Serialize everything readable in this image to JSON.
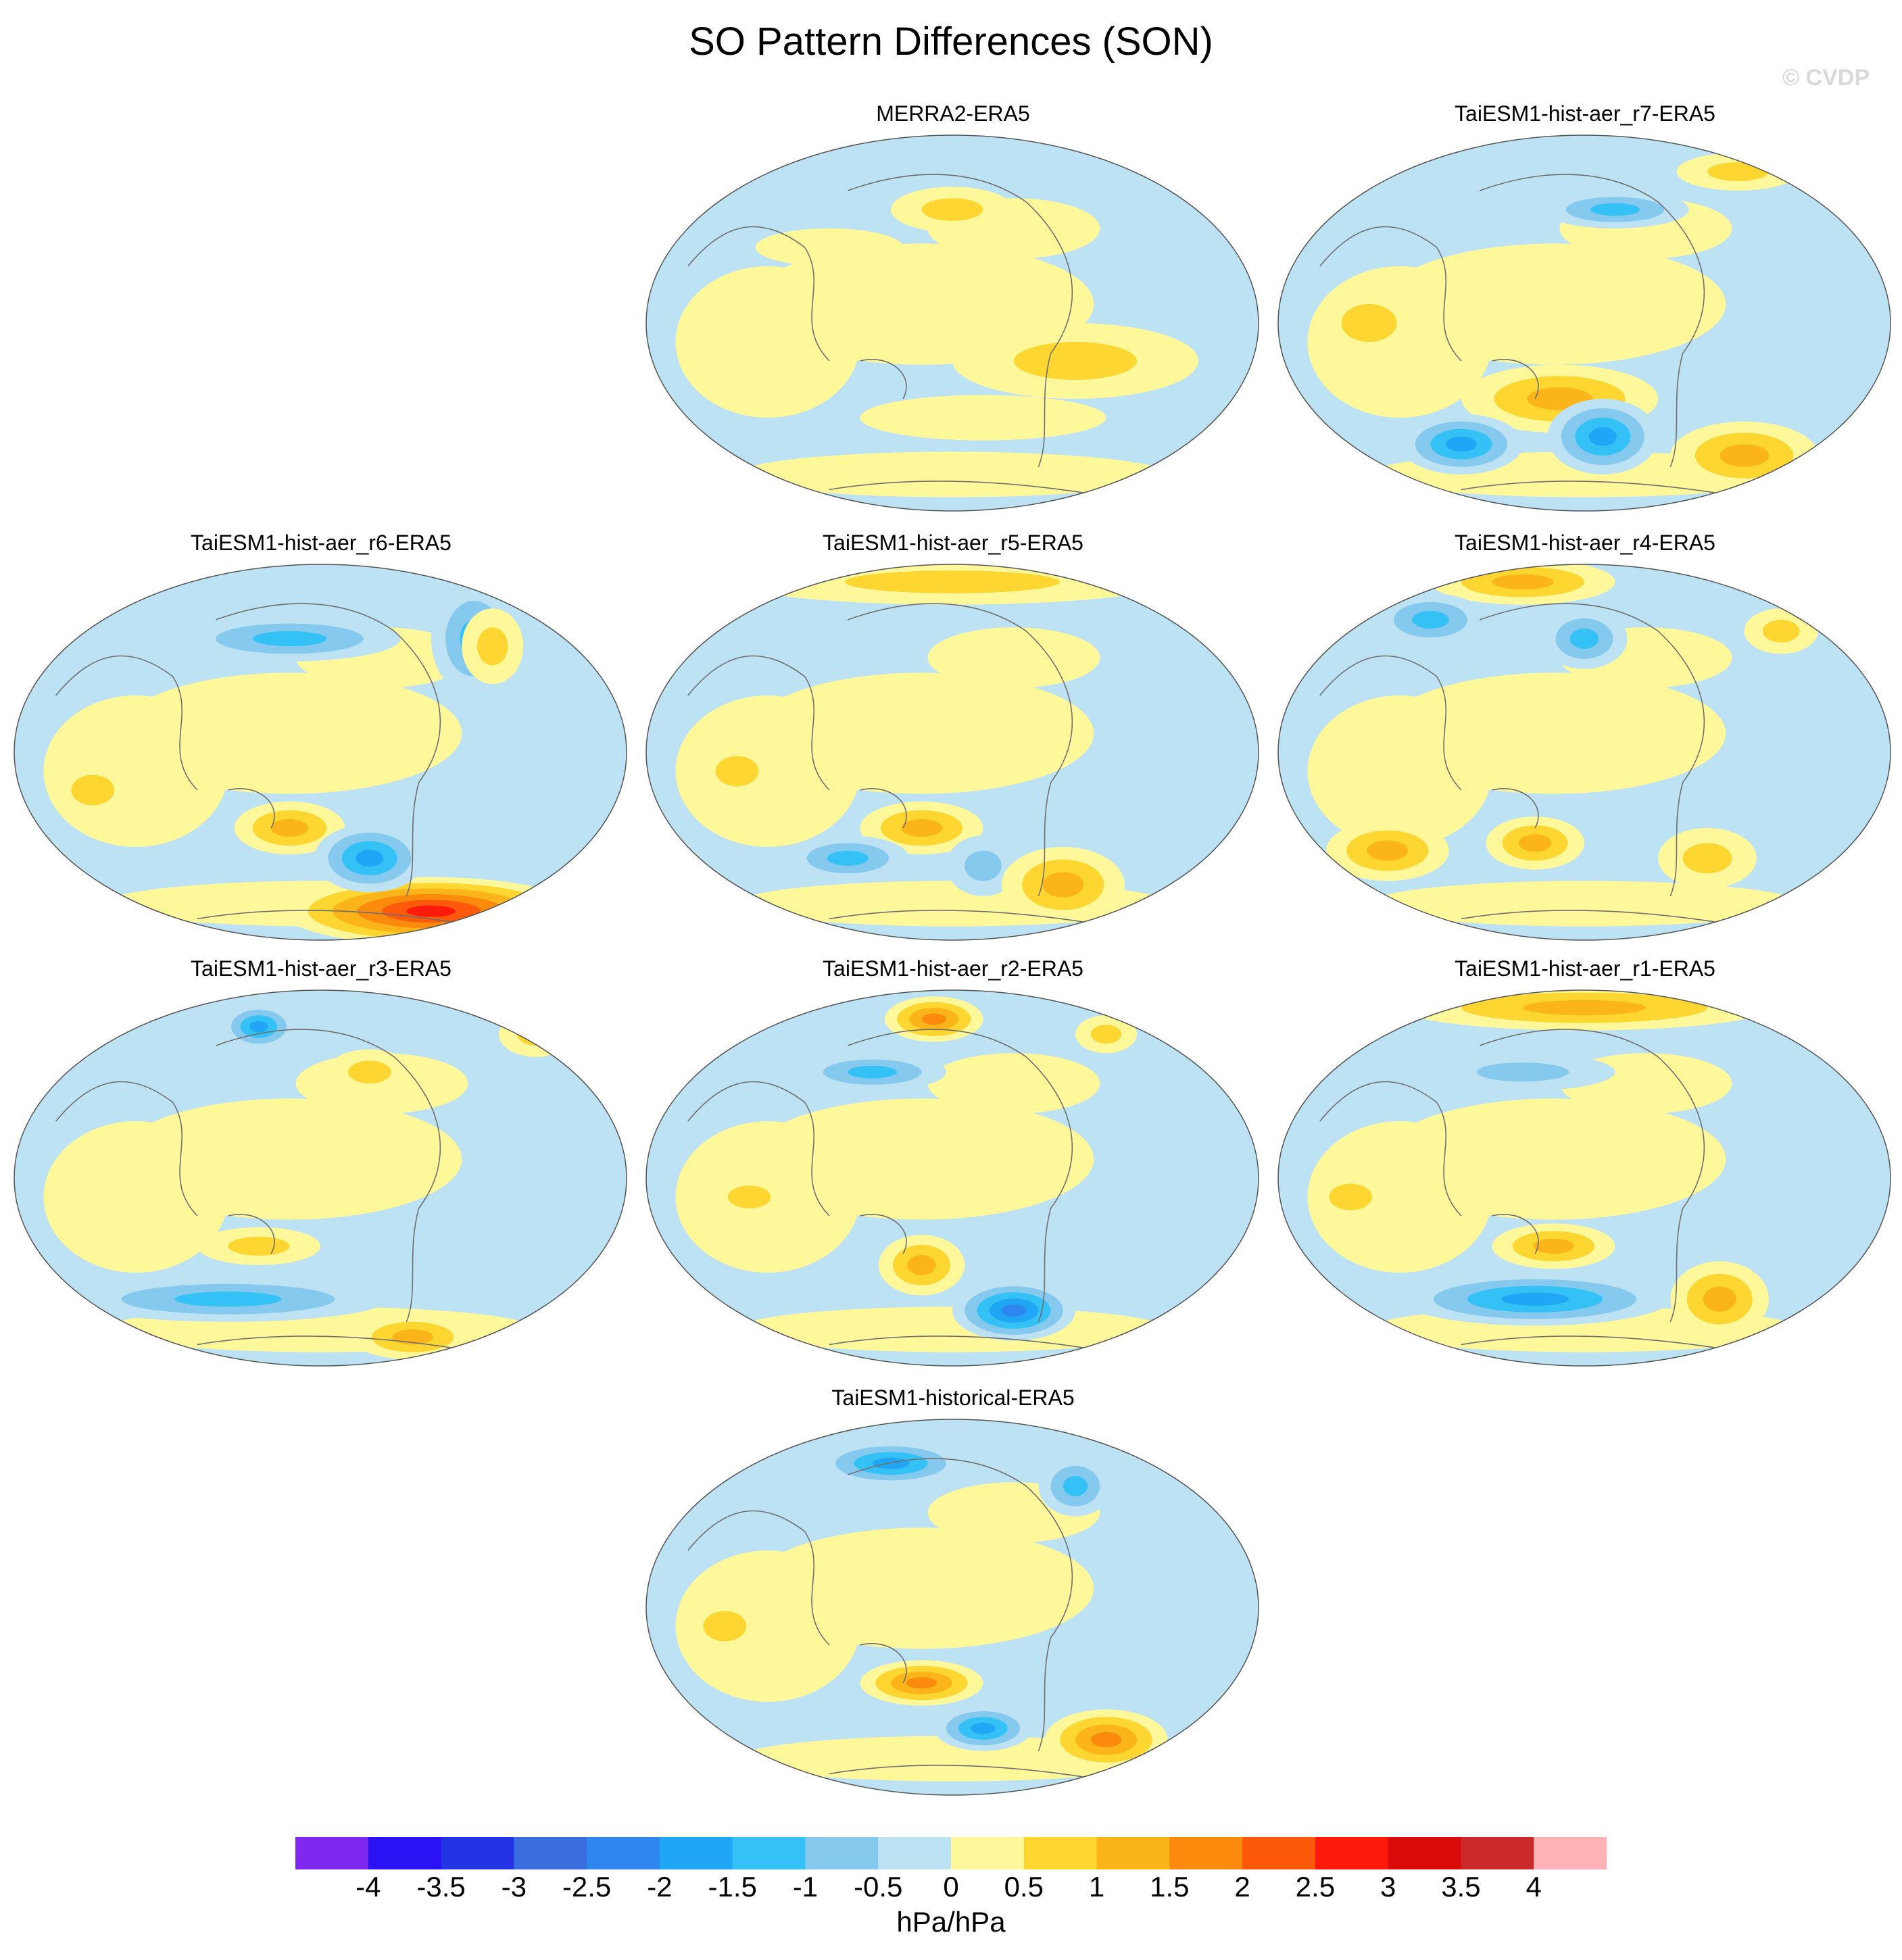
{
  "chart_data": {
    "type": "heatmap",
    "title": "SO Pattern Differences (SON)",
    "watermark": "© CVDP",
    "units": "hPa/hPa",
    "colorbar": {
      "ticks": [
        "-4",
        "-3.5",
        "-3",
        "-2.5",
        "-2",
        "-1.5",
        "-1",
        "-0.5",
        "0",
        "0.5",
        "1",
        "1.5",
        "2",
        "2.5",
        "3",
        "3.5",
        "4"
      ],
      "colors": [
        "#7e27ee",
        "#2a12f5",
        "#2433e3",
        "#3a6ce0",
        "#2e86ee",
        "#20a6f5",
        "#34c2f6",
        "#86c9ee",
        "#bde2f3",
        "#fff89a",
        "#fdd632",
        "#fbb419",
        "#fc8a0c",
        "#fc5a0a",
        "#fc1b0b",
        "#d90b0b",
        "#cc2a2a",
        "#ffb3b6"
      ]
    },
    "panels": [
      {
        "name": "MERRA2-ERA5",
        "features": [
          [
            0.7,
            0.6,
            0.2,
            0.1,
            0.6
          ],
          [
            0.3,
            0.3,
            0.12,
            0.05,
            0.5
          ],
          [
            0.5,
            0.2,
            0.1,
            0.06,
            0.8
          ],
          [
            0.55,
            0.75,
            0.2,
            0.06,
            0.5
          ]
        ]
      },
      {
        "name": "TaiESM1-hist-aer_r7-ERA5",
        "features": [
          [
            0.46,
            0.7,
            0.16,
            0.09,
            1.5
          ],
          [
            0.53,
            0.8,
            0.09,
            0.1,
            -2.0
          ],
          [
            0.3,
            0.82,
            0.1,
            0.08,
            -2.0
          ],
          [
            0.76,
            0.85,
            0.12,
            0.09,
            1.5
          ],
          [
            0.55,
            0.2,
            0.12,
            0.05,
            -1.5
          ],
          [
            0.15,
            0.5,
            0.09,
            0.1,
            1.0
          ],
          [
            0.75,
            0.1,
            0.1,
            0.05,
            1.0
          ]
        ]
      },
      {
        "name": "TaiESM1-hist-aer_r6-ERA5",
        "features": [
          [
            0.68,
            0.92,
            0.24,
            0.09,
            2.8
          ],
          [
            0.45,
            0.7,
            0.09,
            0.07,
            1.5
          ],
          [
            0.58,
            0.78,
            0.09,
            0.09,
            -2.0
          ],
          [
            0.45,
            0.2,
            0.18,
            0.06,
            -1.5
          ],
          [
            0.75,
            0.2,
            0.07,
            0.15,
            -1.5
          ],
          [
            0.78,
            0.22,
            0.05,
            0.1,
            1.0
          ],
          [
            0.13,
            0.6,
            0.07,
            0.08,
            1.0
          ]
        ]
      },
      {
        "name": "TaiESM1-hist-aer_r5-ERA5",
        "features": [
          [
            0.5,
            0.05,
            0.35,
            0.06,
            1.0
          ],
          [
            0.45,
            0.7,
            0.1,
            0.07,
            1.5
          ],
          [
            0.33,
            0.78,
            0.1,
            0.06,
            -1.5
          ],
          [
            0.55,
            0.8,
            0.06,
            0.08,
            -1.0
          ],
          [
            0.68,
            0.85,
            0.1,
            0.1,
            1.5
          ],
          [
            0.15,
            0.55,
            0.07,
            0.08,
            1.0
          ]
        ]
      },
      {
        "name": "TaiESM1-hist-aer_r4-ERA5",
        "features": [
          [
            0.4,
            0.05,
            0.15,
            0.06,
            1.5
          ],
          [
            0.25,
            0.15,
            0.09,
            0.07,
            -1.5
          ],
          [
            0.5,
            0.2,
            0.07,
            0.08,
            -1.5
          ],
          [
            0.42,
            0.74,
            0.08,
            0.07,
            1.5
          ],
          [
            0.18,
            0.76,
            0.1,
            0.08,
            1.5
          ],
          [
            0.7,
            0.78,
            0.08,
            0.08,
            1.0
          ],
          [
            0.82,
            0.18,
            0.06,
            0.06,
            1.0
          ]
        ]
      },
      {
        "name": "TaiESM1-hist-aer_r3-ERA5",
        "features": [
          [
            0.4,
            0.1,
            0.06,
            0.06,
            -2.0
          ],
          [
            0.58,
            0.22,
            0.07,
            0.06,
            1.0
          ],
          [
            0.4,
            0.68,
            0.1,
            0.05,
            1.0
          ],
          [
            0.35,
            0.82,
            0.26,
            0.06,
            -1.5
          ],
          [
            0.65,
            0.92,
            0.1,
            0.06,
            1.5
          ],
          [
            0.85,
            0.12,
            0.06,
            0.06,
            1.0
          ]
        ]
      },
      {
        "name": "TaiESM1-hist-aer_r2-ERA5",
        "features": [
          [
            0.47,
            0.08,
            0.08,
            0.06,
            2.0
          ],
          [
            0.37,
            0.22,
            0.12,
            0.05,
            -1.5
          ],
          [
            0.45,
            0.73,
            0.07,
            0.08,
            1.5
          ],
          [
            0.6,
            0.85,
            0.1,
            0.08,
            -2.5
          ],
          [
            0.75,
            0.12,
            0.05,
            0.05,
            1.0
          ],
          [
            0.17,
            0.55,
            0.07,
            0.06,
            1.0
          ]
        ]
      },
      {
        "name": "TaiESM1-hist-aer_r1-ERA5",
        "features": [
          [
            0.5,
            0.05,
            0.3,
            0.06,
            1.5
          ],
          [
            0.4,
            0.22,
            0.15,
            0.05,
            -1.0
          ],
          [
            0.45,
            0.68,
            0.1,
            0.06,
            1.5
          ],
          [
            0.42,
            0.82,
            0.22,
            0.07,
            -2.0
          ],
          [
            0.72,
            0.82,
            0.08,
            0.1,
            1.5
          ],
          [
            0.12,
            0.55,
            0.07,
            0.07,
            1.0
          ]
        ]
      },
      {
        "name": "TaiESM1-historical-ERA5",
        "features": [
          [
            0.4,
            0.12,
            0.12,
            0.06,
            -2.0
          ],
          [
            0.7,
            0.18,
            0.06,
            0.08,
            -1.5
          ],
          [
            0.45,
            0.7,
            0.1,
            0.06,
            2.0
          ],
          [
            0.55,
            0.82,
            0.08,
            0.06,
            -2.0
          ],
          [
            0.75,
            0.85,
            0.1,
            0.08,
            2.0
          ],
          [
            0.13,
            0.55,
            0.07,
            0.08,
            1.0
          ]
        ]
      }
    ]
  }
}
